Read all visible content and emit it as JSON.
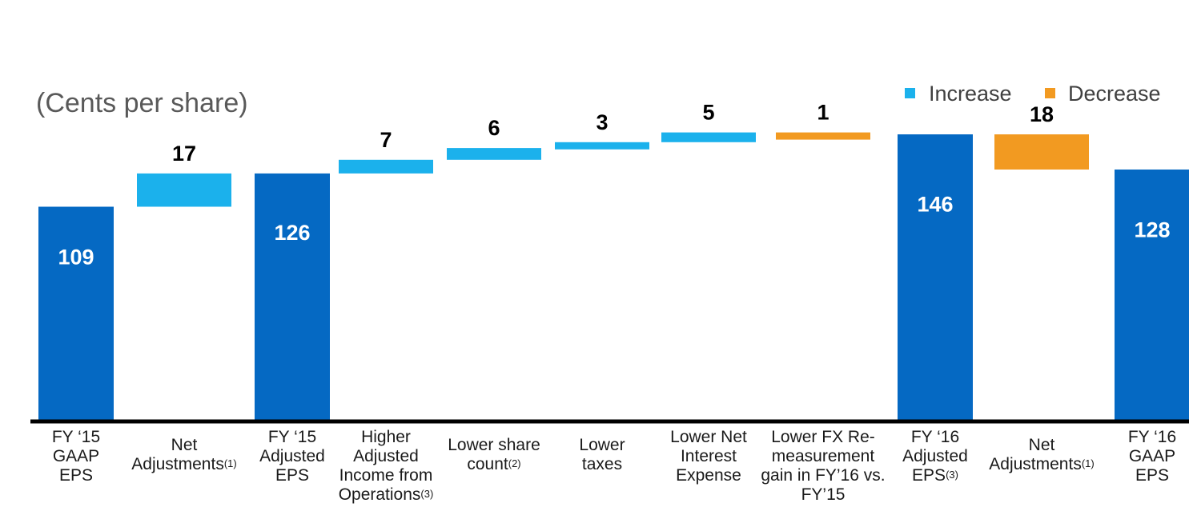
{
  "chart_data": {
    "type": "waterfall",
    "unit_label": "(Cents per share)",
    "legend": [
      {
        "label": "Increase",
        "color": "#1BB1EC"
      },
      {
        "label": "Decrease",
        "color": "#F29A21"
      }
    ],
    "total_color": "#0569C3",
    "ylim": [
      0,
      150
    ],
    "steps": [
      {
        "kind": "total",
        "value": 109,
        "label_lines": [
          "FY ‘15",
          "GAAP",
          "EPS"
        ],
        "sup": ""
      },
      {
        "kind": "increase",
        "value": 17,
        "label_lines": [
          "Net",
          "Adjustments"
        ],
        "sup": "(1)"
      },
      {
        "kind": "total",
        "value": 126,
        "label_lines": [
          "FY ‘15",
          "Adjusted",
          "EPS"
        ],
        "sup": ""
      },
      {
        "kind": "increase",
        "value": 7,
        "label_lines": [
          "Higher",
          "Adjusted",
          "Income from",
          "Operations"
        ],
        "sup": "(3)"
      },
      {
        "kind": "increase",
        "value": 6,
        "label_lines": [
          "Lower share",
          "count"
        ],
        "sup": "(2)"
      },
      {
        "kind": "increase",
        "value": 3,
        "label_lines": [
          "Lower",
          "taxes"
        ],
        "sup": ""
      },
      {
        "kind": "increase",
        "value": 5,
        "label_lines": [
          "Lower Net",
          "Interest",
          "Expense"
        ],
        "sup": ""
      },
      {
        "kind": "decrease",
        "value": 1,
        "label_lines": [
          "Lower FX Re-",
          "measurement",
          "gain in FY’16 vs.",
          "FY’15"
        ],
        "sup": ""
      },
      {
        "kind": "total",
        "value": 146,
        "label_lines": [
          "FY ‘16",
          "Adjusted",
          "EPS"
        ],
        "sup": "(3)"
      },
      {
        "kind": "decrease",
        "value": 18,
        "label_lines": [
          "Net",
          "Adjustments"
        ],
        "sup": "(1)"
      },
      {
        "kind": "total",
        "value": 128,
        "label_lines": [
          "FY ‘16",
          "GAAP",
          "EPS"
        ],
        "sup": ""
      }
    ]
  }
}
